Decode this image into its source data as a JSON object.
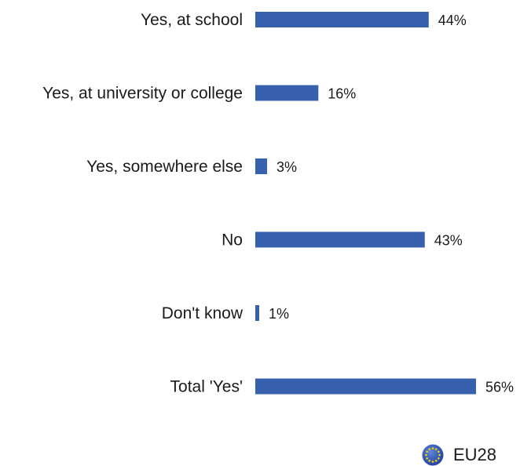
{
  "chart_data": {
    "type": "bar",
    "orientation": "horizontal",
    "categories": [
      "Yes, at school",
      "Yes, at university or college",
      "Yes, somewhere else",
      "No",
      "Don't know",
      "Total 'Yes'"
    ],
    "values": [
      44,
      16,
      3,
      43,
      1,
      56
    ],
    "value_labels": [
      "44%",
      "16%",
      "3%",
      "43%",
      "1%",
      "56%"
    ],
    "xlim": [
      0,
      60
    ],
    "bar_color": "#3760ad",
    "grid": false,
    "legend_placement": "bottom-right"
  },
  "legend": {
    "label": "EU28",
    "icon": "eu-flag-icon",
    "icon_color": "#1f3f9e",
    "star_color": "#f5d300"
  }
}
